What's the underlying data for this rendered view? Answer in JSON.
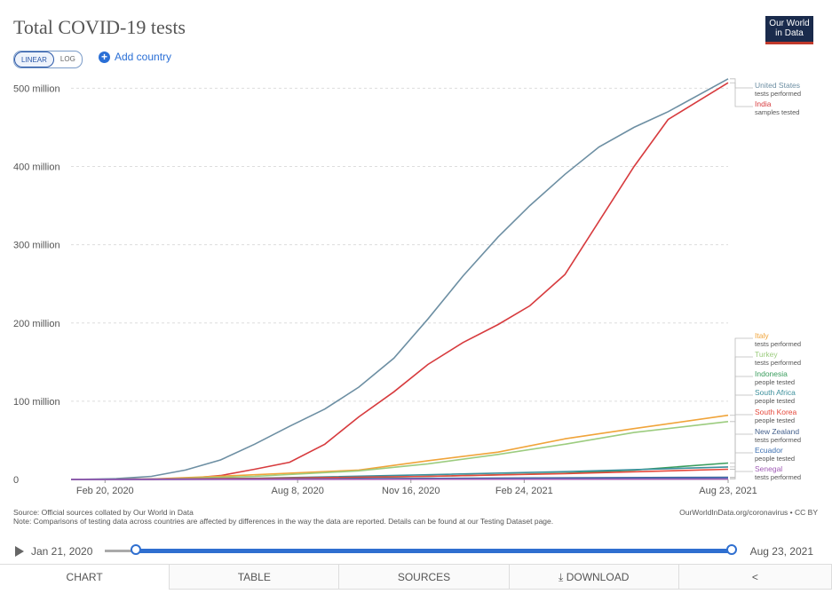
{
  "header": {
    "title": "Total COVID-19 tests",
    "logo": "Our World in Data"
  },
  "controls": {
    "linear": "LINEAR",
    "log": "LOG",
    "add_country": "Add country"
  },
  "footer": {
    "source": "Source: Official sources collated by Our World in Data",
    "note": "Note: Comparisons of testing data across countries are affected by differences in the way the data are reported. Details can be found at our Testing Dataset page.",
    "credit": "OurWorldInData.org/coronavirus • CC BY"
  },
  "timeline": {
    "start": "Jan 21, 2020",
    "end": "Aug 23, 2021"
  },
  "tabs": {
    "chart": "CHART",
    "table": "TABLE",
    "sources": "SOURCES",
    "download": "DOWNLOAD"
  },
  "chart_data": {
    "type": "line",
    "title": "Total COVID-19 tests",
    "ylim": [
      0,
      520
    ],
    "yticks": [
      0,
      100,
      200,
      300,
      400,
      500
    ],
    "ytick_labels": [
      "0",
      "100 million",
      "200 million",
      "300 million",
      "400 million",
      "500 million"
    ],
    "xlim": [
      "2020-01-21",
      "2021-08-23"
    ],
    "xticks": [
      "2020-02-20",
      "2020-08-08",
      "2020-11-16",
      "2021-02-24",
      "2021-08-23"
    ],
    "xtick_labels": [
      "Feb 20, 2020",
      "Aug 8, 2020",
      "Nov 16, 2020",
      "Feb 24, 2021",
      "Aug 23, 2021"
    ],
    "grid": true,
    "series": [
      {
        "name": "United States",
        "sub": "tests performed",
        "color": "#6d8fa3",
        "x": [
          "2020-01-21",
          "2020-03-01",
          "2020-04-01",
          "2020-05-01",
          "2020-06-01",
          "2020-07-01",
          "2020-08-01",
          "2020-09-01",
          "2020-10-01",
          "2020-11-01",
          "2020-12-01",
          "2021-01-01",
          "2021-02-01",
          "2021-03-01",
          "2021-04-01",
          "2021-05-01",
          "2021-06-01",
          "2021-07-01",
          "2021-08-23"
        ],
        "y": [
          0,
          1,
          4,
          12,
          25,
          45,
          68,
          90,
          118,
          155,
          205,
          260,
          310,
          350,
          390,
          425,
          450,
          470,
          512
        ]
      },
      {
        "name": "India",
        "sub": "samples tested",
        "color": "#d73b3e",
        "x": [
          "2020-01-21",
          "2020-04-01",
          "2020-05-01",
          "2020-06-01",
          "2020-07-01",
          "2020-08-01",
          "2020-09-01",
          "2020-10-01",
          "2020-11-01",
          "2020-12-01",
          "2021-01-01",
          "2021-02-01",
          "2021-03-01",
          "2021-04-01",
          "2021-05-01",
          "2021-06-01",
          "2021-07-01",
          "2021-08-23"
        ],
        "y": [
          0,
          0.1,
          1,
          5,
          13,
          22,
          45,
          80,
          112,
          147,
          175,
          198,
          222,
          262,
          330,
          400,
          460,
          507
        ]
      },
      {
        "name": "Italy",
        "sub": "tests performed",
        "color": "#f0a43a",
        "x": [
          "2020-01-21",
          "2020-04-01",
          "2020-07-01",
          "2020-10-01",
          "2020-12-01",
          "2021-02-01",
          "2021-04-01",
          "2021-06-01",
          "2021-08-23"
        ],
        "y": [
          0,
          0.5,
          6,
          12,
          24,
          35,
          52,
          65,
          82
        ]
      },
      {
        "name": "Turkey",
        "sub": "tests performed",
        "color": "#9ccc7f",
        "x": [
          "2020-01-21",
          "2020-04-01",
          "2020-07-01",
          "2020-10-01",
          "2020-12-01",
          "2021-02-01",
          "2021-04-01",
          "2021-06-01",
          "2021-08-23"
        ],
        "y": [
          0,
          0.3,
          4,
          11,
          20,
          32,
          45,
          60,
          74
        ]
      },
      {
        "name": "Indonesia",
        "sub": "people tested",
        "color": "#3a9d5d",
        "x": [
          "2020-01-21",
          "2020-07-01",
          "2020-12-01",
          "2021-04-01",
          "2021-06-01",
          "2021-08-23"
        ],
        "y": [
          0,
          0.5,
          4,
          8,
          12,
          21
        ]
      },
      {
        "name": "South Africa",
        "sub": "people tested",
        "color": "#3b8f9b",
        "x": [
          "2020-01-21",
          "2020-07-01",
          "2020-12-01",
          "2021-04-01",
          "2021-08-23"
        ],
        "y": [
          0,
          1.5,
          6,
          10,
          16
        ]
      },
      {
        "name": "South Korea",
        "sub": "people tested",
        "color": "#e5483b",
        "x": [
          "2020-01-21",
          "2020-07-01",
          "2020-12-01",
          "2021-04-01",
          "2021-08-23"
        ],
        "y": [
          0,
          1.3,
          4,
          7.5,
          13
        ]
      },
      {
        "name": "New Zealand",
        "sub": "tests performed",
        "color": "#45618c",
        "x": [
          "2020-01-21",
          "2020-07-01",
          "2021-08-23"
        ],
        "y": [
          0,
          0.5,
          2.8
        ]
      },
      {
        "name": "Ecuador",
        "sub": "people tested",
        "color": "#3c6fb0",
        "x": [
          "2020-01-21",
          "2020-07-01",
          "2021-08-23"
        ],
        "y": [
          0,
          0.3,
          2.2
        ]
      },
      {
        "name": "Senegal",
        "sub": "tests performed",
        "color": "#a05bb5",
        "x": [
          "2020-01-21",
          "2020-07-01",
          "2021-08-23"
        ],
        "y": [
          0,
          0.1,
          0.6
        ]
      }
    ],
    "labels": [
      {
        "series": 0,
        "label_y": 95
      },
      {
        "series": 1,
        "label_y": 116
      },
      {
        "series": 2,
        "label_y": 377
      },
      {
        "series": 3,
        "label_y": 398
      },
      {
        "series": 4,
        "label_y": 420
      },
      {
        "series": 5,
        "label_y": 441
      },
      {
        "series": 6,
        "label_y": 463
      },
      {
        "series": 7,
        "label_y": 485
      },
      {
        "series": 8,
        "label_y": 506
      },
      {
        "series": 9,
        "label_y": 527
      }
    ]
  }
}
